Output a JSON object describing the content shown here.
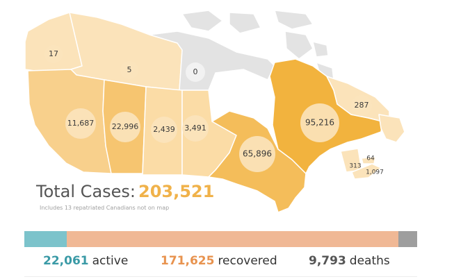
{
  "colors": {
    "outline": "#ffffff",
    "no_data_region": "#e3e3e3",
    "label_bubble": "#fbe3bd",
    "bubble_zero": "#f2f2f2",
    "total_value": "#f0b24a",
    "active": "#7cc3cb",
    "recovered": "#f0b895",
    "deaths": "#9e9e9e",
    "active_text": "#3a9aa6",
    "recovered_text": "#e8934f",
    "deaths_text": "#555555"
  },
  "regions": [
    {
      "id": "yukon",
      "cases": "17",
      "fill": "#fbe3ba"
    },
    {
      "id": "northwest-territories",
      "cases": "5",
      "fill": "#fbe3ba"
    },
    {
      "id": "nunavut",
      "cases": "0",
      "fill": "#e3e3e3"
    },
    {
      "id": "british-columbia",
      "cases": "11,687",
      "fill": "#f8d08c"
    },
    {
      "id": "alberta",
      "cases": "22,996",
      "fill": "#f6c570"
    },
    {
      "id": "saskatchewan",
      "cases": "2,439",
      "fill": "#fbdca6"
    },
    {
      "id": "manitoba",
      "cases": "3,491",
      "fill": "#fbdca6"
    },
    {
      "id": "ontario",
      "cases": "65,896",
      "fill": "#f4bd5a"
    },
    {
      "id": "quebec",
      "cases": "95,216",
      "fill": "#f2b33e"
    },
    {
      "id": "newfoundland-labrador",
      "cases": "287",
      "fill": "#fbe3ba"
    },
    {
      "id": "prince-edward-island",
      "cases": "64",
      "fill": "#fbe3ba"
    },
    {
      "id": "new-brunswick",
      "cases": "313",
      "fill": "#fbe3ba"
    },
    {
      "id": "nova-scotia",
      "cases": "1,097",
      "fill": "#fbe3ba"
    }
  ],
  "total": {
    "label": "Total Cases:",
    "value": "203,521",
    "note": "Includes 13 repatriated Canadians not on map"
  },
  "status": {
    "active": {
      "value": "22,061",
      "label": "active",
      "count": 22061
    },
    "recovered": {
      "value": "171,625",
      "label": "recovered",
      "count": 171625
    },
    "deaths": {
      "value": "9,793",
      "label": "deaths",
      "count": 9793
    }
  }
}
